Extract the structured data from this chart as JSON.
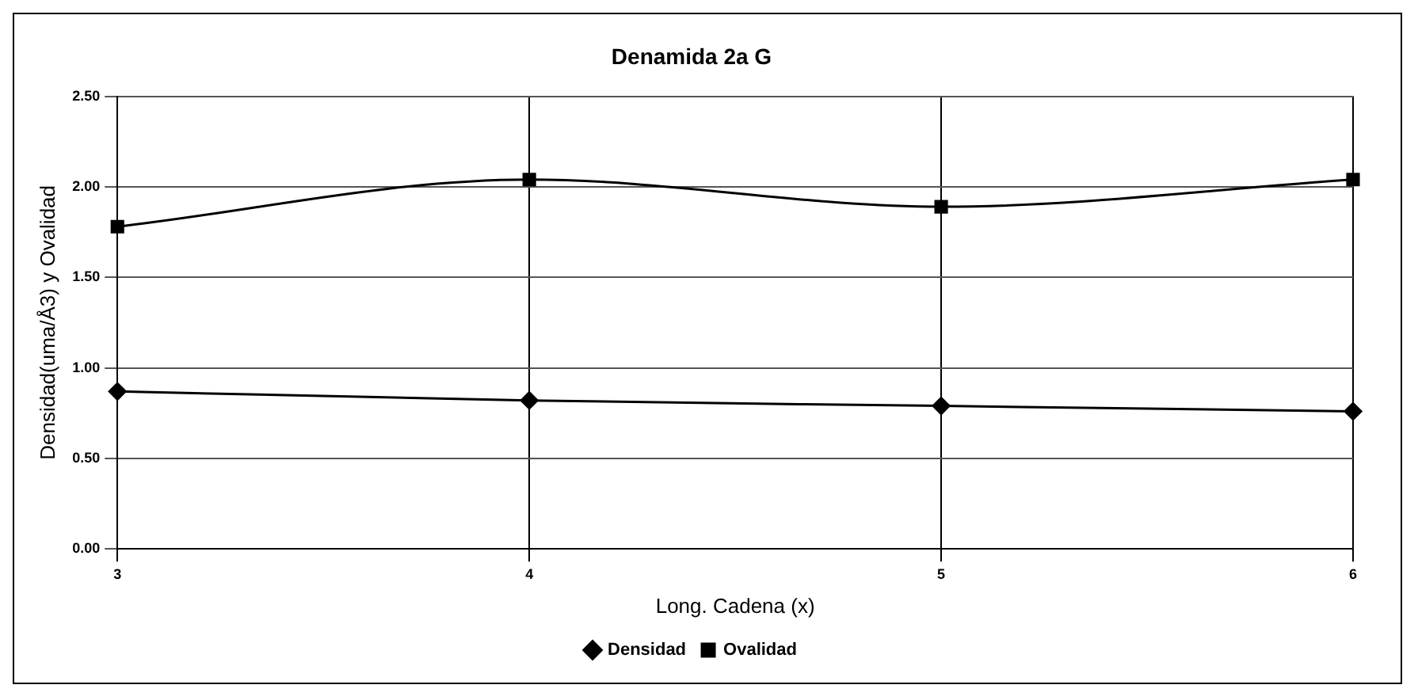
{
  "chart_data": {
    "type": "line",
    "title": "Denamida 2a G",
    "xlabel": "Long. Cadena (x)",
    "ylabel": "Densidad(uma/Å3) y Ovalidad",
    "categories": [
      "3",
      "4",
      "5",
      "6"
    ],
    "series": [
      {
        "name": "Densidad",
        "color": "#000000",
        "values": [
          0.87,
          0.82,
          0.79,
          0.76
        ],
        "marker": "diamond"
      },
      {
        "name": "Ovalidad",
        "color": "#000000",
        "values": [
          1.78,
          2.04,
          1.89,
          2.04
        ],
        "marker": "square"
      }
    ],
    "ylim": [
      0,
      2.5
    ],
    "yticks": [
      {
        "value": 0,
        "label": "0.00"
      },
      {
        "value": 0.5,
        "label": "0.50"
      },
      {
        "value": 1,
        "label": "1.00"
      },
      {
        "value": 1.5,
        "label": "1.50"
      },
      {
        "value": 2,
        "label": "2.00"
      },
      {
        "value": 2.5,
        "label": "2.50"
      }
    ],
    "grid": true,
    "legend": "bottom",
    "line_style": "solid"
  }
}
